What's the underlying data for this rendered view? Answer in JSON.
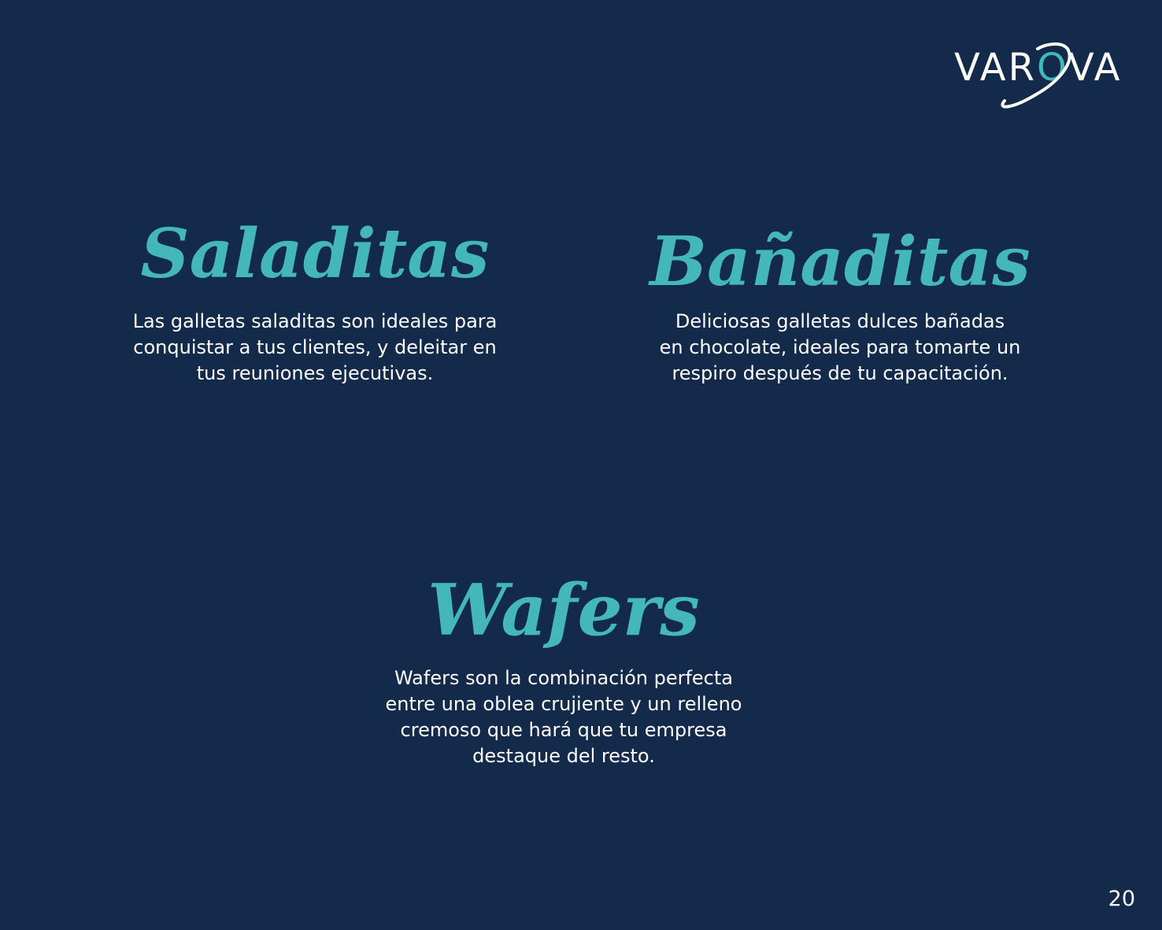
{
  "brand": {
    "logo_text_prefix": "VAR",
    "logo_text_o": "O",
    "logo_text_suffix": "VA",
    "background_color": "#142a4a",
    "accent_color": "#44b8b8",
    "text_color": "#ffffff"
  },
  "sections": {
    "saladitas": {
      "title": "Saladitas",
      "lines": [
        "Las galletas saladitas son ideales para",
        "conquistar a tus clientes, y deleitar en",
        "tus reuniones ejecutivas."
      ]
    },
    "banaditas": {
      "title": "Bañaditas",
      "lines": [
        "Deliciosas galletas dulces bañadas",
        "en chocolate, ideales para tomarte un",
        "respiro después de tu capacitación."
      ]
    },
    "wafers": {
      "title": "Wafers",
      "lines": [
        "Wafers son la combinación perfecta",
        "entre una oblea crujiente y un relleno",
        "cremoso que hará que tu empresa",
        "destaque del resto."
      ]
    }
  },
  "footer": {
    "page_number": "20"
  }
}
